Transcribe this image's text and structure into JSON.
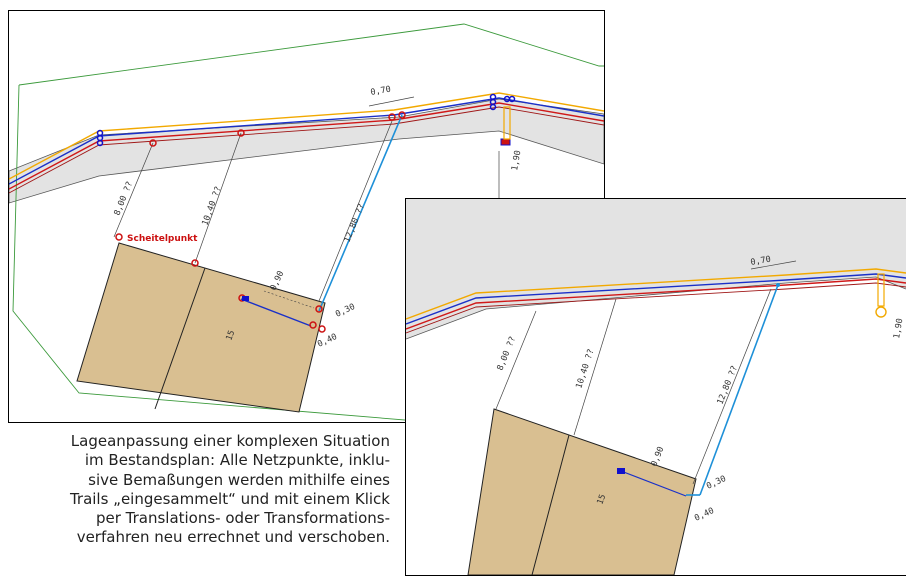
{
  "colors": {
    "parcel_fill": "#d9bf91",
    "road_fill": "#e3e3e3",
    "boundary_green": "#3c9a3c",
    "line_orange": "#f2a900",
    "line_blue": "#1a30c8",
    "line_red": "#d01818",
    "trail_cyan": "#1e90d8",
    "point_red": "#cc1111",
    "point_blue": "#1010cc"
  },
  "left_panel": {
    "label_scheitelpunkt": "Scheitelpunkt",
    "dim_top": "0,70",
    "dim_1": "8,00 ??",
    "dim_2": "10,40 ??",
    "dim_3": "12,80 ??",
    "dim_4": "1,90",
    "dim_5": "0,90",
    "dim_6": "0,30",
    "dim_7": "0,40",
    "parcel_number": "15"
  },
  "right_panel": {
    "dim_top": "0,70",
    "dim_1": "8,00 ??",
    "dim_2": "10,40 ??",
    "dim_3": "12,80 ??",
    "dim_4": "1,90",
    "dim_5": "0,90",
    "dim_6": "0,30",
    "dim_7": "0,40",
    "parcel_number": "15"
  },
  "caption_lines": [
    "Lageanpassung einer komplexen Situation",
    "im Bestandsplan: Alle Netzpunkte, inklu-",
    "sive Bemaßungen werden mithilfe eines",
    "Trails „eingesammelt“ und mit einem Klick",
    "per Translations- oder Transformations-",
    "verfahren neu errechnet und verschoben."
  ]
}
